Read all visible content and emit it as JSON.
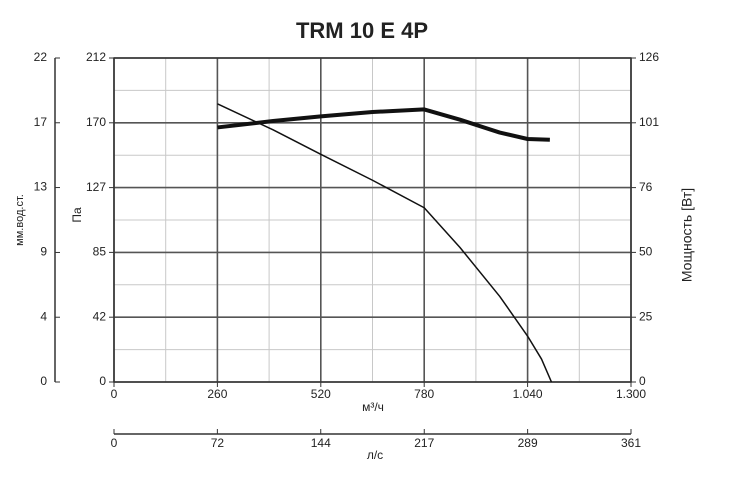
{
  "chart_data": {
    "type": "line",
    "title": "TRM 10 E 4P",
    "x_label": "м³/ч",
    "x2_label": "л/с",
    "y_label": "Па",
    "y3_label": "мм.вод.ст.",
    "y2_label": "Мощность [Вт]",
    "xlim": [
      0,
      1300
    ],
    "xticks": [
      0,
      260,
      520,
      780,
      {
        "value": 1040,
        "label": "1.040"
      },
      {
        "value": 1300,
        "label": "1.300"
      }
    ],
    "x2lim": [
      0,
      361.1
    ],
    "x2ticks": [
      0,
      {
        "value": 72.2,
        "label": "72"
      },
      {
        "value": 144.4,
        "label": "144"
      },
      {
        "value": 216.7,
        "label": "217"
      },
      {
        "value": 288.9,
        "label": "289"
      },
      {
        "value": 361.1,
        "label": "361"
      }
    ],
    "ylim": [
      0,
      212
    ],
    "yticks": [
      0,
      {
        "value": 42.4,
        "label": "42"
      },
      {
        "value": 84.8,
        "label": "85"
      },
      {
        "value": 127.2,
        "label": "127"
      },
      {
        "value": 169.6,
        "label": "170"
      },
      212
    ],
    "y3lim": [
      0,
      21.61
    ],
    "y3ticks": [
      0,
      {
        "value": 4.32,
        "label": "4"
      },
      {
        "value": 8.64,
        "label": "9"
      },
      {
        "value": 12.97,
        "label": "13"
      },
      {
        "value": 17.29,
        "label": "17"
      },
      {
        "value": 21.61,
        "label": "22"
      }
    ],
    "y2lim": [
      0,
      126
    ],
    "y2ticks": [
      0,
      {
        "value": 25.2,
        "label": "25"
      },
      {
        "value": 50.4,
        "label": "50"
      },
      {
        "value": 75.6,
        "label": "76"
      },
      {
        "value": 100.8,
        "label": "101"
      },
      126
    ],
    "grid": true,
    "minor_grid": true,
    "series": [
      {
        "color": "#111111",
        "x": [
          260,
          400,
          520,
          650,
          780,
          870,
          970,
          1040,
          1075,
          1100
        ],
        "values": [
          182,
          165,
          149,
          132,
          114,
          88,
          56,
          30,
          15,
          0
        ]
      },
      {
        "color": "#111111",
        "axis": "y2",
        "x": [
          260,
          400,
          520,
          650,
          780,
          870,
          970,
          1040,
          1096
        ],
        "values": [
          99,
          101.5,
          103.3,
          105,
          106,
          102,
          97,
          94.5,
          94.2
        ]
      }
    ]
  }
}
